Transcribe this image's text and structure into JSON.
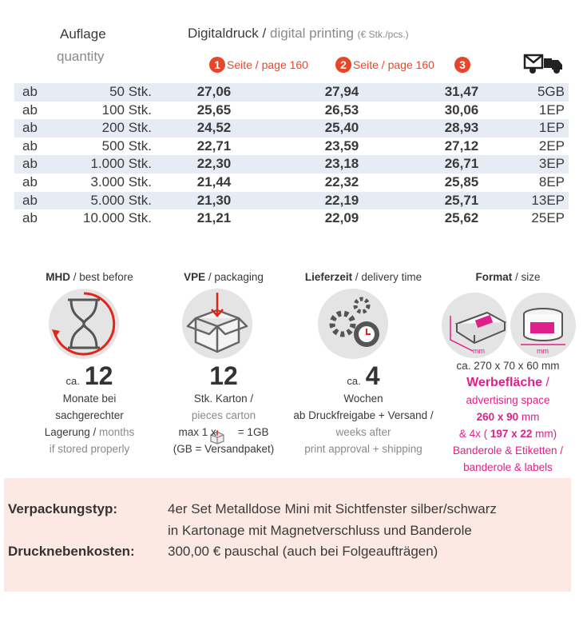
{
  "header": {
    "quantity_de": "Auflage",
    "quantity_en": "quantity",
    "print_de": "Digitaldruck",
    "separator": "/",
    "print_en": "digital printing",
    "unit": "(€ Stk./pcs.)"
  },
  "columns": [
    {
      "number": "1",
      "label": "Seite / page 160"
    },
    {
      "number": "2",
      "label": "Seite / page 160"
    },
    {
      "number": "3"
    }
  ],
  "table": {
    "rows": [
      [
        "ab",
        "50 Stk.",
        "27,06",
        "27,94",
        "31,47",
        "5GB"
      ],
      [
        "ab",
        "100 Stk.",
        "25,65",
        "26,53",
        "30,06",
        "1EP"
      ],
      [
        "ab",
        "200 Stk.",
        "24,52",
        "25,40",
        "28,93",
        "1EP"
      ],
      [
        "ab",
        "500 Stk.",
        "22,71",
        "23,59",
        "27,12",
        "2EP"
      ],
      [
        "ab",
        "1.000 Stk.",
        "22,30",
        "23,18",
        "26,71",
        "3EP"
      ],
      [
        "ab",
        "3.000 Stk.",
        "21,44",
        "22,32",
        "25,85",
        "8EP"
      ],
      [
        "ab",
        "5.000 Stk.",
        "21,30",
        "22,19",
        "25,71",
        "13EP"
      ],
      [
        "ab",
        "10.000 Stk.",
        "21,21",
        "22,09",
        "25,62",
        "25EP"
      ]
    ]
  },
  "info": [
    {
      "title": "MHD",
      "subtitle": "/ best before",
      "prefix": "ca.",
      "value": "12",
      "lines": [
        [
          {
            "text": "Monate bei"
          }
        ],
        [
          {
            "text": "sachgerechter"
          }
        ],
        [
          {
            "text": "Lagerung /"
          },
          {
            "text": "months",
            "style": "gray"
          }
        ],
        [
          {
            "text": "if stored properly",
            "style": "gray"
          }
        ]
      ]
    },
    {
      "title": "VPE",
      "subtitle": "/ packaging",
      "value": "12",
      "lines": [
        [
          {
            "text": "Stk. Karton /"
          }
        ],
        [
          {
            "text": "pieces carton",
            "style": "gray"
          }
        ],
        [
          {
            "text": "max 1 x"
          },
          {
            "text": "= 1GB"
          }
        ],
        [
          {
            "text": "(GB = Versandpaket)"
          }
        ]
      ]
    },
    {
      "title": "Lieferzeit",
      "subtitle": "/ delivery time",
      "prefix": "ca.",
      "value": "4",
      "lines": [
        [
          {
            "text": "Wochen"
          }
        ],
        [
          {
            "text": "ab Druckfreigabe + Versand /"
          }
        ],
        [
          {
            "text": "weeks after",
            "style": "gray"
          }
        ],
        [
          {
            "text": "print approval + shipping",
            "style": "gray"
          }
        ]
      ]
    },
    {
      "title": "Format",
      "subtitle": "/ size",
      "marks": [
        "mm",
        "mm"
      ],
      "lines": [
        [
          {
            "text": "ca. 270 x 70 x 60 mm"
          }
        ],
        [
          {
            "text": "Werbefläche",
            "style": "magenta-bold"
          },
          {
            "text": "/",
            "style": "magenta"
          }
        ],
        [
          {
            "text": "advertising space",
            "style": "magenta"
          }
        ],
        [
          {
            "text": "260 x 90",
            "style": "magenta-bold"
          },
          {
            "text": "mm",
            "style": "magenta"
          }
        ],
        [
          {
            "text": "& 4x (",
            "style": "magenta"
          },
          {
            "text": "197 x 22",
            "style": "magenta-bold"
          },
          {
            "text": "mm)",
            "style": "magenta"
          }
        ],
        [
          {
            "text": "Banderole & Etiketten /",
            "style": "magenta"
          }
        ],
        [
          {
            "text": "banderole & labels",
            "style": "magenta"
          }
        ]
      ]
    }
  ],
  "footer": [
    {
      "label": "Verpackungstyp:",
      "lines": [
        "4er Set Metalldose Mini mit Sichtfenster silber/schwarz",
        "in Kartonage mit Magnetverschluss und Banderole"
      ]
    },
    {
      "label": "Drucknebenkosten:",
      "lines": [
        "300,00 € pauschal (auch bei Folgeaufträgen)"
      ]
    }
  ]
}
